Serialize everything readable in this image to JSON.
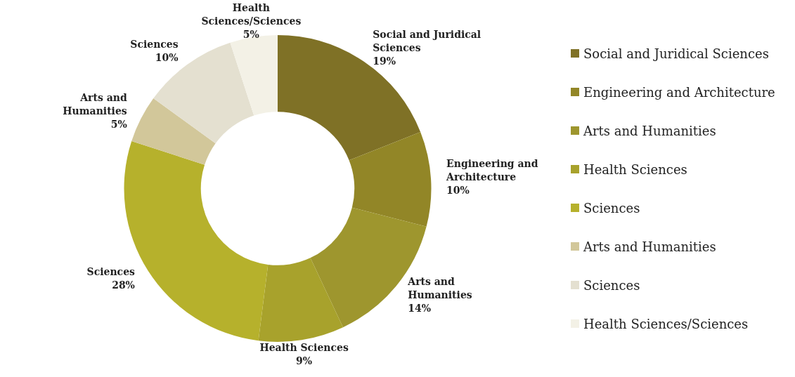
{
  "chart_data": {
    "type": "donut",
    "categories": [
      "Social and Juridical Sciences",
      "Engineering and Architecture",
      "Arts and Humanities",
      "Health Sciences",
      "Sciences",
      "Arts and Humanities",
      "Sciences",
      "Health Sciences/Sciences"
    ],
    "values": [
      19,
      10,
      14,
      9,
      28,
      5,
      10,
      5
    ],
    "colors": [
      "#7f7126",
      "#928627",
      "#9e962e",
      "#a8a22c",
      "#b6b12c",
      "#d2c79a",
      "#e4e0d0",
      "#f3f1e6"
    ],
    "value_labels": [
      "19%",
      "10%",
      "14%",
      "9%",
      "28%",
      "5%",
      "10%",
      "5%"
    ],
    "legend": "right"
  }
}
